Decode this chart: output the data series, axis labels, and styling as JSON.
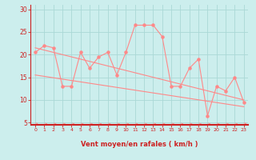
{
  "xlabel": "Vent moyen/en rafales ( km/h )",
  "bg_color": "#cceeed",
  "grid_color": "#aad8d6",
  "line_color": "#ff8888",
  "axis_color": "#cc2222",
  "text_color": "#cc2222",
  "xlim": [
    -0.5,
    23.5
  ],
  "ylim": [
    4.5,
    31
  ],
  "yticks": [
    5,
    10,
    15,
    20,
    25,
    30
  ],
  "xticks": [
    0,
    1,
    2,
    3,
    4,
    5,
    6,
    7,
    8,
    9,
    10,
    11,
    12,
    13,
    14,
    15,
    16,
    17,
    18,
    19,
    20,
    21,
    22,
    23
  ],
  "line1_x": [
    0,
    1,
    2,
    3,
    4,
    5,
    6,
    7,
    8,
    9,
    10,
    11,
    12,
    13,
    14,
    15,
    16,
    17,
    18,
    19,
    20,
    21,
    22,
    23
  ],
  "line1_y": [
    20.5,
    22,
    21.5,
    13,
    13,
    20.5,
    17,
    19.5,
    20.5,
    15.5,
    20.5,
    26.5,
    26.5,
    26.5,
    24,
    13,
    13,
    17,
    19,
    6.5,
    13,
    12,
    15,
    9.5
  ],
  "line2_x": [
    0,
    23
  ],
  "line2_y": [
    21.5,
    10.0
  ],
  "line3_x": [
    0,
    23
  ],
  "line3_y": [
    15.5,
    8.5
  ],
  "marker_size": 2.2
}
